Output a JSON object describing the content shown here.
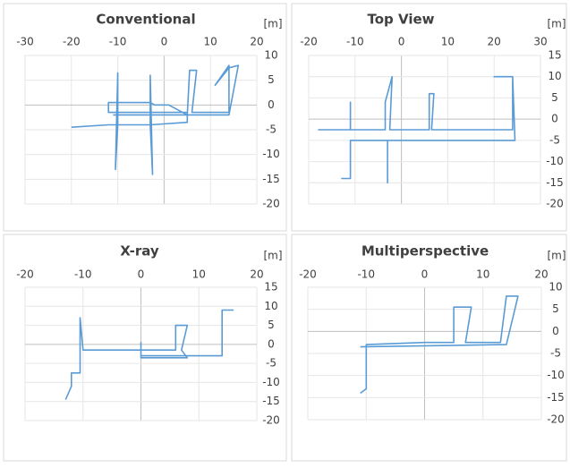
{
  "chart_data": [
    {
      "type": "line",
      "title": "Conventional",
      "axis_label": "[m]",
      "color": "#5b9bd5",
      "xlim": [
        -30,
        20
      ],
      "xticks": [
        -30,
        -20,
        -10,
        0,
        10,
        20
      ],
      "ylim": [
        -20,
        10
      ],
      "yticks": [
        10,
        5,
        0,
        -5,
        -10,
        -15,
        -20
      ],
      "x": [
        -20,
        -12,
        -10,
        -10,
        -10.5,
        -10,
        -3,
        -3,
        -2.5,
        -3,
        5,
        5,
        -12,
        -12,
        -10,
        -3,
        -2,
        1,
        5,
        5.5,
        7,
        6,
        14,
        14,
        11,
        14,
        16,
        14,
        -11
      ],
      "values": [
        -4.5,
        -4,
        -4,
        6.5,
        -13,
        -4,
        -4,
        6,
        -14,
        -4,
        -3.5,
        -1.5,
        -1.5,
        0.5,
        0.5,
        0.5,
        0,
        0,
        -2,
        7,
        7,
        -1.5,
        -1.5,
        8,
        4,
        7.5,
        8,
        -2,
        -2
      ]
    },
    {
      "type": "line",
      "title": "Top View",
      "axis_label": "[m]",
      "color": "#5b9bd5",
      "xlim": [
        -20,
        30
      ],
      "xticks": [
        -20,
        -10,
        0,
        10,
        20,
        30
      ],
      "ylim": [
        -20,
        15
      ],
      "yticks": [
        15,
        10,
        5,
        0,
        -5,
        -10,
        -15,
        -20
      ],
      "x": [
        -18,
        -11,
        -11,
        -11,
        -3.5,
        -3.5,
        -2,
        -2.5,
        6,
        6,
        7,
        6.5,
        24,
        24,
        20,
        24,
        24.5,
        -3,
        -3,
        -3,
        -11,
        -11,
        -13
      ],
      "values": [
        -2.5,
        -2.5,
        4,
        -2.5,
        -2.5,
        4,
        10,
        -2.5,
        -2.5,
        6,
        6,
        -2.5,
        -2.5,
        10,
        10,
        10,
        -5,
        -5,
        -15,
        -5,
        -5,
        -14,
        -14
      ]
    },
    {
      "type": "line",
      "title": "X-ray",
      "axis_label": "[m]",
      "color": "#5b9bd5",
      "xlim": [
        -20,
        20
      ],
      "xticks": [
        -20,
        -10,
        0,
        10,
        20
      ],
      "ylim": [
        -20,
        15
      ],
      "yticks": [
        15,
        10,
        5,
        0,
        -5,
        -10,
        -15,
        -20
      ],
      "x": [
        -13,
        -12,
        -12,
        -10.5,
        -10.5,
        -10,
        6,
        6,
        8,
        7,
        8,
        0,
        0,
        0,
        14,
        14,
        16
      ],
      "values": [
        -14.5,
        -11,
        -7.5,
        -7.5,
        7,
        -1.5,
        -1.5,
        5,
        5,
        -1.5,
        -3.5,
        -3.5,
        0.5,
        -3,
        -3,
        9,
        9
      ]
    },
    {
      "type": "line",
      "title": "Multiperspective",
      "axis_label": "[m]",
      "color": "#5b9bd5",
      "xlim": [
        -20,
        20
      ],
      "xticks": [
        -20,
        -10,
        0,
        10,
        20
      ],
      "ylim": [
        -20,
        10
      ],
      "yticks": [
        10,
        5,
        0,
        -5,
        -10,
        -15,
        -20
      ],
      "x": [
        -11,
        -10,
        -10,
        0,
        5,
        5,
        8,
        7,
        13,
        14,
        16,
        14,
        -11
      ],
      "values": [
        -14,
        -13,
        -3,
        -2.5,
        -2.5,
        5.5,
        5.5,
        -2.5,
        -2.5,
        8,
        8,
        -3,
        -3.5
      ]
    }
  ]
}
